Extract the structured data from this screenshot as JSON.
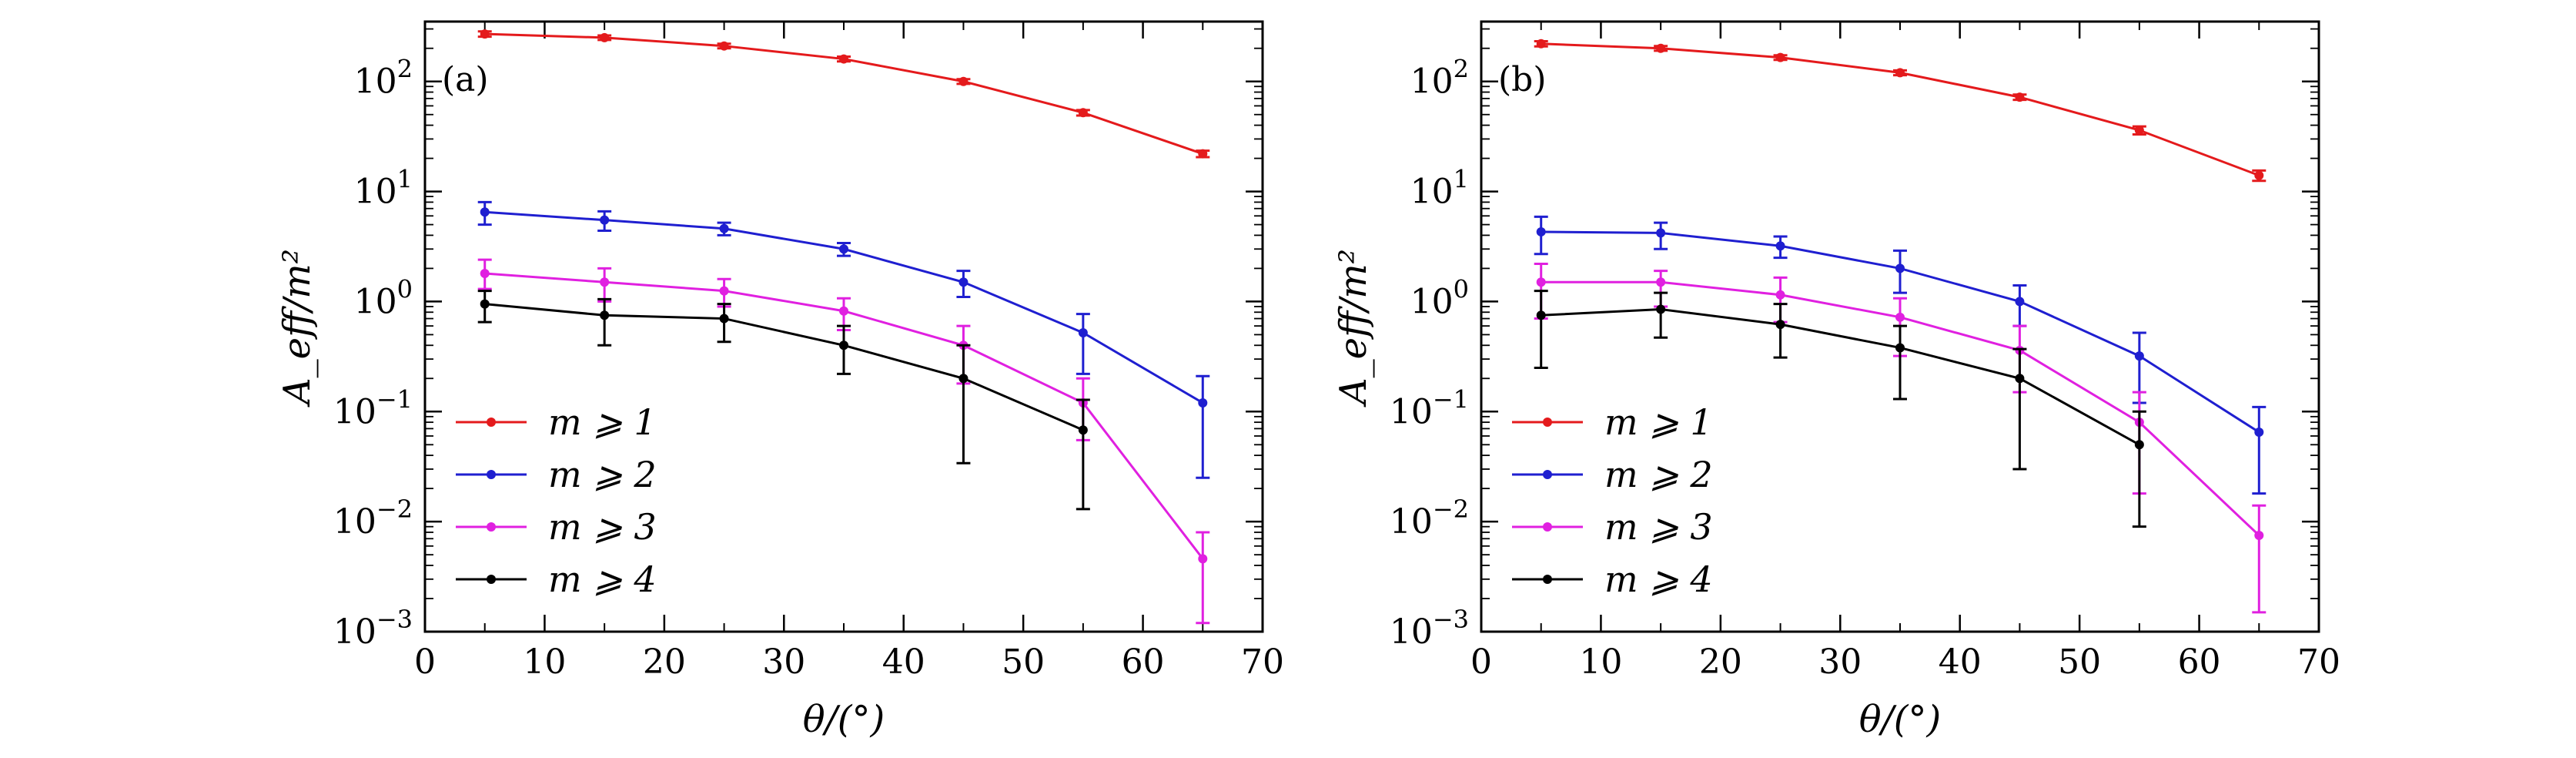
{
  "chart_data": [
    {
      "type": "line",
      "panel_label": "(a)",
      "xlabel": "θ/(°)",
      "ylabel": "A_eff/m²",
      "xlim": [
        0,
        70
      ],
      "ylim": [
        0.001,
        350
      ],
      "yscale": "log",
      "xticks": [
        0,
        10,
        20,
        30,
        40,
        50,
        60,
        70
      ],
      "yticks": [
        {
          "value": 0.001,
          "base": "10",
          "exp": "−3"
        },
        {
          "value": 0.01,
          "base": "10",
          "exp": "−2"
        },
        {
          "value": 0.1,
          "base": "10",
          "exp": "−1"
        },
        {
          "value": 1,
          "base": "10",
          "exp": "0"
        },
        {
          "value": 10,
          "base": "10",
          "exp": "1"
        },
        {
          "value": 100,
          "base": "10",
          "exp": "2"
        }
      ],
      "grid": false,
      "legend_position": "bottom-left",
      "x": [
        5,
        15,
        25,
        35,
        45,
        55,
        65
      ],
      "series": [
        {
          "name": "m ⩾ 1",
          "color": "#e41a1c",
          "y": [
            270,
            250,
            210,
            160,
            100,
            52,
            22
          ],
          "err_low": [
            15,
            12,
            10,
            8,
            5,
            3,
            1.5
          ],
          "err_high": [
            15,
            12,
            10,
            8,
            5,
            3,
            1.5
          ]
        },
        {
          "name": "m ⩾ 2",
          "color": "#1f1fd0",
          "y": [
            6.5,
            5.5,
            4.6,
            3.0,
            1.5,
            0.52,
            0.12
          ],
          "err_low": [
            1.5,
            1.1,
            0.6,
            0.4,
            0.4,
            0.3,
            0.095
          ],
          "err_high": [
            1.5,
            1.1,
            0.6,
            0.4,
            0.4,
            0.25,
            0.09
          ]
        },
        {
          "name": "m ⩾ 3",
          "color": "#e020e0",
          "y": [
            1.8,
            1.5,
            1.25,
            0.82,
            0.4,
            0.12,
            0.0046
          ],
          "err_low": [
            0.5,
            0.5,
            0.35,
            0.27,
            0.22,
            0.065,
            0.0034
          ],
          "err_high": [
            0.6,
            0.5,
            0.35,
            0.25,
            0.2,
            0.08,
            0.0034
          ]
        },
        {
          "name": "m ⩾ 4",
          "color": "#000000",
          "y": [
            0.95,
            0.75,
            0.7,
            0.4,
            0.2,
            0.068,
            null
          ],
          "err_low": [
            0.3,
            0.35,
            0.27,
            0.18,
            0.166,
            0.055,
            null
          ],
          "err_high": [
            0.3,
            0.3,
            0.25,
            0.2,
            0.2,
            0.06,
            null
          ]
        }
      ]
    },
    {
      "type": "line",
      "panel_label": "(b)",
      "xlabel": "θ/(°)",
      "ylabel": "A_eff/m²",
      "xlim": [
        0,
        70
      ],
      "ylim": [
        0.001,
        350
      ],
      "yscale": "log",
      "xticks": [
        0,
        10,
        20,
        30,
        40,
        50,
        60,
        70
      ],
      "yticks": [
        {
          "value": 0.001,
          "base": "10",
          "exp": "−3"
        },
        {
          "value": 0.01,
          "base": "10",
          "exp": "−2"
        },
        {
          "value": 0.1,
          "base": "10",
          "exp": "−1"
        },
        {
          "value": 1,
          "base": "10",
          "exp": "0"
        },
        {
          "value": 10,
          "base": "10",
          "exp": "1"
        },
        {
          "value": 100,
          "base": "10",
          "exp": "2"
        }
      ],
      "grid": false,
      "legend_position": "bottom-left",
      "x": [
        5,
        15,
        25,
        35,
        45,
        55,
        65
      ],
      "series": [
        {
          "name": "m ⩾ 1",
          "color": "#e41a1c",
          "y": [
            220,
            200,
            165,
            120,
            72,
            36,
            14
          ],
          "err_low": [
            12,
            10,
            8,
            6,
            4,
            3,
            1.5
          ],
          "err_high": [
            12,
            10,
            8,
            6,
            4,
            3,
            1.5
          ]
        },
        {
          "name": "m ⩾ 2",
          "color": "#1f1fd0",
          "y": [
            4.3,
            4.2,
            3.2,
            2.0,
            1.0,
            0.32,
            0.065
          ],
          "err_low": [
            1.6,
            1.2,
            0.7,
            0.8,
            0.4,
            0.2,
            0.047
          ],
          "err_high": [
            1.6,
            1.0,
            0.7,
            0.9,
            0.4,
            0.2,
            0.045
          ]
        },
        {
          "name": "m ⩾ 3",
          "color": "#e020e0",
          "y": [
            1.5,
            1.5,
            1.15,
            0.72,
            0.36,
            0.08,
            0.0075
          ],
          "err_low": [
            0.8,
            0.6,
            0.5,
            0.4,
            0.21,
            0.062,
            0.006
          ],
          "err_high": [
            0.7,
            0.4,
            0.5,
            0.35,
            0.24,
            0.07,
            0.0065
          ]
        },
        {
          "name": "m ⩾ 4",
          "color": "#000000",
          "y": [
            0.75,
            0.85,
            0.62,
            0.38,
            0.2,
            0.05,
            null
          ],
          "err_low": [
            0.5,
            0.38,
            0.31,
            0.25,
            0.17,
            0.041,
            null
          ],
          "err_high": [
            0.5,
            0.35,
            0.33,
            0.22,
            0.17,
            0.05,
            null
          ]
        }
      ]
    }
  ]
}
